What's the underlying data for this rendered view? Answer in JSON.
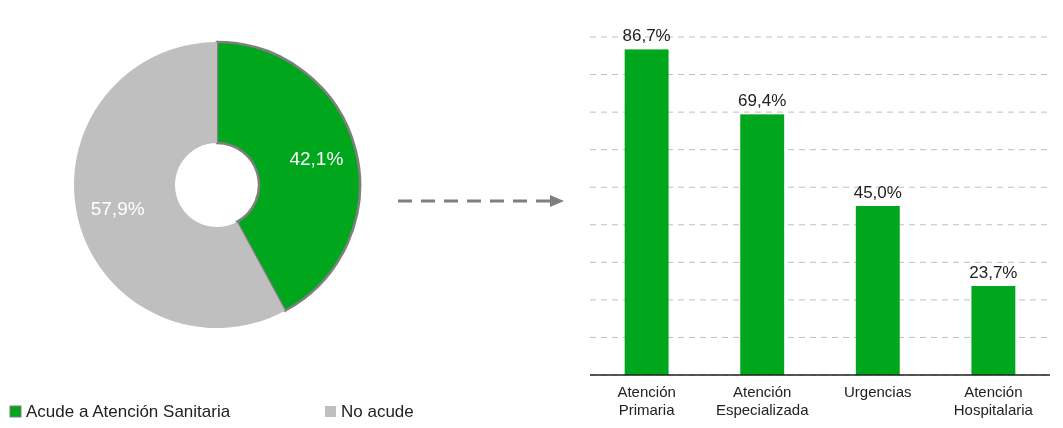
{
  "chart_data": [
    {
      "type": "donut",
      "categories": [
        "Acude a Atención Sanitaria",
        "No acude"
      ],
      "values": [
        42.1,
        57.9
      ],
      "colors": [
        "#00a61c",
        "#bfbfbf"
      ],
      "value_labels": [
        "42,1%",
        "57,9%"
      ],
      "legend": "bottom"
    },
    {
      "type": "bar",
      "categories": [
        "Atención Primaria",
        "Atención Especializada",
        "Urgencias",
        "Atención Hospitalaria"
      ],
      "values": [
        86.7,
        69.4,
        45.0,
        23.7
      ],
      "color": "#00a61c",
      "value_labels": [
        "86,7%",
        "69,4%",
        "45,0%",
        "23,7%"
      ],
      "ylim": [
        0,
        90
      ],
      "yticks": [
        {
          "value": 0,
          "label": null
        },
        {
          "value": 10,
          "label": null
        },
        {
          "value": 20,
          "label": null
        },
        {
          "value": 30,
          "label": null
        },
        {
          "value": 40,
          "label": null
        },
        {
          "value": 50,
          "label": null
        },
        {
          "value": 60,
          "label": null
        },
        {
          "value": 70,
          "label": null
        },
        {
          "value": 80,
          "label": null
        },
        {
          "value": 90,
          "label": null
        }
      ],
      "grid": "y",
      "tick_labels": "x"
    }
  ]
}
